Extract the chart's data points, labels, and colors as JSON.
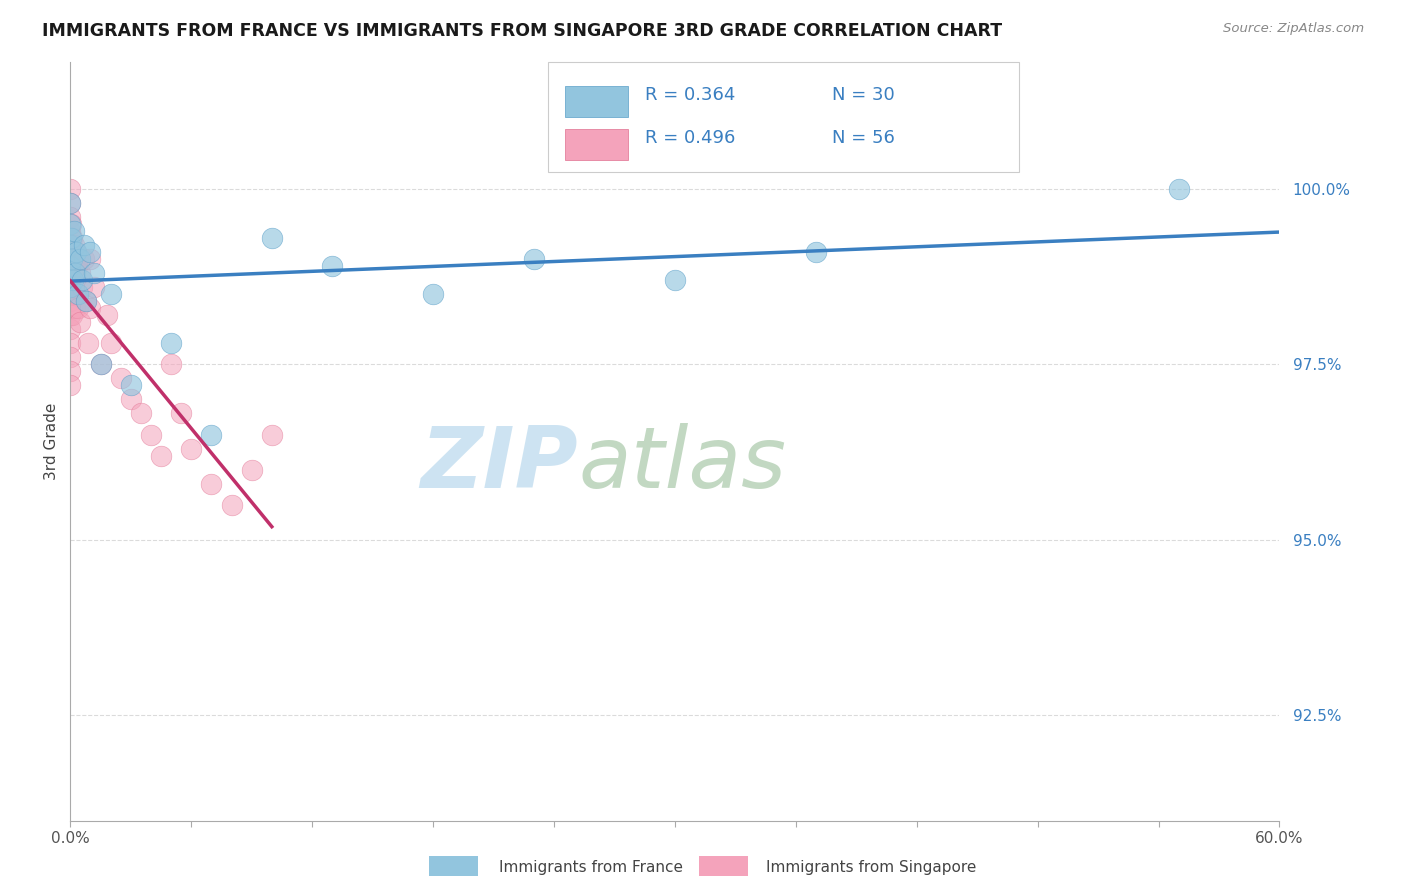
{
  "title": "IMMIGRANTS FROM FRANCE VS IMMIGRANTS FROM SINGAPORE 3RD GRADE CORRELATION CHART",
  "source": "Source: ZipAtlas.com",
  "ylabel": "3rd Grade",
  "xlim": [
    0.0,
    60.0
  ],
  "ylim": [
    91.0,
    101.8
  ],
  "ytick_vals": [
    92.5,
    95.0,
    97.5,
    100.0
  ],
  "ytick_labels": [
    "92.5%",
    "95.0%",
    "97.5%",
    "100.0%"
  ],
  "legend_label_france": "Immigrants from France",
  "legend_label_singapore": "Immigrants from Singapore",
  "blue_color": "#92c5de",
  "pink_color": "#f4a3bb",
  "blue_edge": "#5a9fc8",
  "pink_edge": "#e07090",
  "trendline_blue": "#3a7fc1",
  "trendline_pink": "#c0306a",
  "legend_r_france": "R = 0.364",
  "legend_n_france": "N = 30",
  "legend_r_singapore": "R = 0.496",
  "legend_n_singapore": "N = 56",
  "grid_color": "#cccccc",
  "watermark_zip_color": "#c5dff0",
  "watermark_atlas_color": "#a8c8a8",
  "france_x": [
    0.0,
    0.0,
    0.0,
    0.0,
    0.0,
    0.05,
    0.1,
    0.15,
    0.2,
    0.25,
    0.3,
    0.4,
    0.5,
    0.6,
    0.7,
    0.8,
    1.0,
    1.2,
    1.5,
    2.0,
    3.0,
    5.0,
    7.0,
    10.0,
    13.0,
    18.0,
    23.0,
    30.0,
    37.0,
    55.0
  ],
  "france_y": [
    99.8,
    99.5,
    99.2,
    98.9,
    98.6,
    99.3,
    99.0,
    98.7,
    99.4,
    98.8,
    99.1,
    98.5,
    99.0,
    98.7,
    99.2,
    98.4,
    99.1,
    98.8,
    97.5,
    98.5,
    97.2,
    97.8,
    96.5,
    99.3,
    98.9,
    98.5,
    99.0,
    98.7,
    99.1,
    100.0
  ],
  "singapore_x": [
    0.0,
    0.0,
    0.0,
    0.0,
    0.0,
    0.0,
    0.0,
    0.0,
    0.0,
    0.0,
    0.0,
    0.0,
    0.0,
    0.0,
    0.0,
    0.05,
    0.05,
    0.05,
    0.1,
    0.1,
    0.1,
    0.15,
    0.15,
    0.2,
    0.2,
    0.25,
    0.25,
    0.3,
    0.3,
    0.35,
    0.4,
    0.4,
    0.5,
    0.5,
    0.6,
    0.7,
    0.8,
    0.9,
    1.0,
    1.0,
    1.2,
    1.5,
    1.8,
    2.0,
    2.5,
    3.0,
    3.5,
    4.0,
    4.5,
    5.0,
    5.5,
    6.0,
    7.0,
    8.0,
    9.0,
    10.0
  ],
  "singapore_y": [
    100.0,
    99.8,
    99.6,
    99.4,
    99.2,
    99.0,
    98.8,
    98.6,
    98.4,
    98.2,
    98.0,
    97.8,
    97.6,
    97.4,
    97.2,
    99.5,
    99.1,
    98.6,
    99.3,
    98.8,
    98.2,
    99.0,
    98.5,
    99.2,
    98.6,
    99.0,
    98.3,
    99.1,
    98.5,
    98.9,
    99.0,
    98.3,
    98.8,
    98.1,
    98.6,
    99.0,
    98.4,
    97.8,
    99.0,
    98.3,
    98.6,
    97.5,
    98.2,
    97.8,
    97.3,
    97.0,
    96.8,
    96.5,
    96.2,
    97.5,
    96.8,
    96.3,
    95.8,
    95.5,
    96.0,
    96.5
  ]
}
